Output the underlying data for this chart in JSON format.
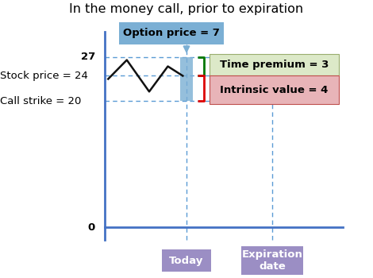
{
  "title": "In the money call, prior to expiration",
  "title_fontsize": 11.5,
  "background_color": "#ffffff",
  "price_0": 0,
  "price_20": 20,
  "price_24": 24,
  "price_27": 27,
  "axis_color": "#4472c4",
  "dashed_color": "#5b9bd5",
  "option_box_color": "#7bafd4",
  "option_box_text": "Option price = 7",
  "today_box_color": "#9b8ec4",
  "today_text": "Today",
  "expiry_text": "Expiration\ndate",
  "time_premium_color": "#dce9c8",
  "time_premium_text": "Time premium = 3",
  "time_premium_border": "#9aad6e",
  "intrinsic_color": "#e8b4b8",
  "intrinsic_text": "Intrinsic value = 4",
  "intrinsic_border": "#c0504d",
  "bar_color": "#7bafd4",
  "green_bracket_color": "#007700",
  "red_bracket_color": "#dd0000",
  "stock_line_color": "#111111",
  "label_fontsize": 9.5,
  "annotation_fontsize": 9.5
}
